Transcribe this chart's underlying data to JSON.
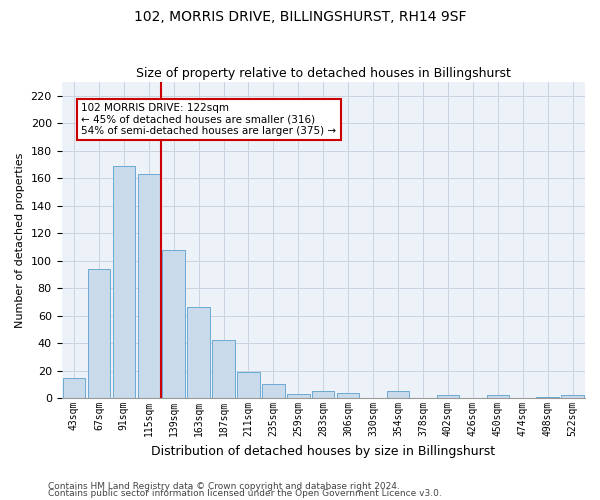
{
  "title": "102, MORRIS DRIVE, BILLINGSHURST, RH14 9SF",
  "subtitle": "Size of property relative to detached houses in Billingshurst",
  "xlabel": "Distribution of detached houses by size in Billingshurst",
  "ylabel": "Number of detached properties",
  "footnote1": "Contains HM Land Registry data © Crown copyright and database right 2024.",
  "footnote2": "Contains public sector information licensed under the Open Government Licence v3.0.",
  "categories": [
    "43sqm",
    "67sqm",
    "91sqm",
    "115sqm",
    "139sqm",
    "163sqm",
    "187sqm",
    "211sqm",
    "235sqm",
    "259sqm",
    "283sqm",
    "306sqm",
    "330sqm",
    "354sqm",
    "378sqm",
    "402sqm",
    "426sqm",
    "450sqm",
    "474sqm",
    "498sqm",
    "522sqm"
  ],
  "values": [
    15,
    94,
    169,
    163,
    108,
    66,
    42,
    19,
    10,
    3,
    5,
    4,
    0,
    5,
    0,
    2,
    0,
    2,
    0,
    1,
    2
  ],
  "bar_color": "#c9daea",
  "bar_edge_color": "#6aaad4",
  "grid_color": "#c8d4e0",
  "background_color": "#ffffff",
  "plot_bg_color": "#edf2f9",
  "vline_color": "#cc0000",
  "vline_x": 3.5,
  "annotation_text": "102 MORRIS DRIVE: 122sqm\n← 45% of detached houses are smaller (316)\n54% of semi-detached houses are larger (375) →",
  "annotation_box_facecolor": "#ffffff",
  "annotation_box_edgecolor": "#cc0000",
  "ylim": [
    0,
    230
  ],
  "yticks": [
    0,
    20,
    40,
    60,
    80,
    100,
    120,
    140,
    160,
    180,
    200,
    220
  ],
  "title_fontsize": 10,
  "subtitle_fontsize": 9,
  "xlabel_fontsize": 9,
  "ylabel_fontsize": 8,
  "tick_fontsize": 8,
  "xtick_fontsize": 7,
  "footnote_fontsize": 6.5
}
